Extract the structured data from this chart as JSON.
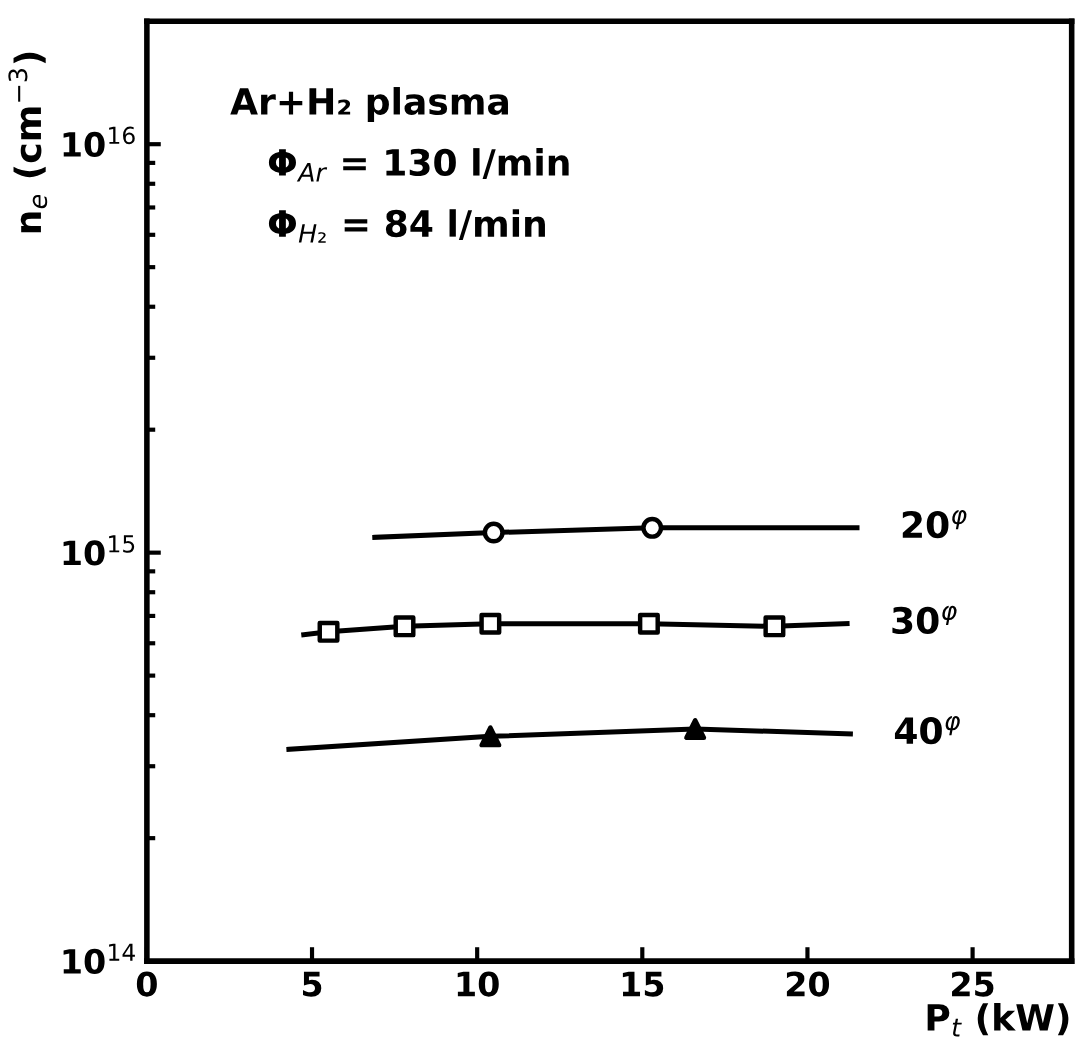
{
  "chart_data": {
    "type": "line",
    "xlabel": "P$_{t}$ (kW)",
    "ylabel": "n$_{e}$ (cm$^{−3}$)",
    "annotations": [
      "Ar+H₂ plasma",
      "Φ$_{Ar}$ = 130 l/min",
      "Φ$_{H₂}$ = 84 l/min"
    ],
    "xlim": [
      0,
      28
    ],
    "xticks": [
      0,
      5,
      10,
      15,
      20,
      25
    ],
    "ylim": [
      100000000000000.0,
      2e+16
    ],
    "yticks": [
      {
        "value": 100000000000000.0,
        "label": "10$^{14}$"
      },
      {
        "value": 1000000000000000.0,
        "label": "10$^{15}$"
      },
      {
        "value": 1e+16,
        "label": "10$^{16}$"
      }
    ],
    "log": "y",
    "grid": false,
    "legend": false,
    "series": [
      {
        "name": "20$^{φ}$",
        "color": "#000000",
        "marker": "none",
        "x": [
          6.9,
          10.5,
          15.3,
          21.5
        ],
        "values": [
          1090000000000000.0,
          1120000000000000.0,
          1150000000000000.0,
          1150000000000000.0
        ]
      },
      {
        "type": "scatter",
        "color": "#000000",
        "marker": "circle",
        "x": [
          10.5,
          15.3
        ],
        "values": [
          1120000000000000.0,
          1150000000000000.0
        ]
      },
      {
        "name": "30$^{φ}$",
        "color": "#000000",
        "marker": "none",
        "x": [
          4.75,
          5.5,
          7.8,
          10.4,
          15.2,
          19.0,
          21.2
        ],
        "values": [
          630000000000000.0,
          640000000000000.0,
          660000000000000.0,
          670000000000000.0,
          670000000000000.0,
          660000000000000.0,
          670000000000000.0
        ]
      },
      {
        "type": "scatter",
        "color": "#000000",
        "marker": "square",
        "x": [
          5.5,
          7.8,
          10.4,
          15.2,
          19.0
        ],
        "values": [
          640000000000000.0,
          660000000000000.0,
          670000000000000.0,
          670000000000000.0,
          660000000000000.0
        ]
      },
      {
        "name": "40$^{φ}$",
        "color": "#000000",
        "marker": "none",
        "x": [
          4.3,
          10.4,
          16.6,
          21.3
        ],
        "values": [
          330000000000000.0,
          355000000000000.0,
          370000000000000.0,
          360000000000000.0
        ]
      },
      {
        "type": "scatter",
        "color": "#000000",
        "marker": "triangle",
        "x": [
          10.4,
          16.6
        ],
        "values": [
          355000000000000.0,
          370000000000000.0
        ]
      }
    ]
  }
}
